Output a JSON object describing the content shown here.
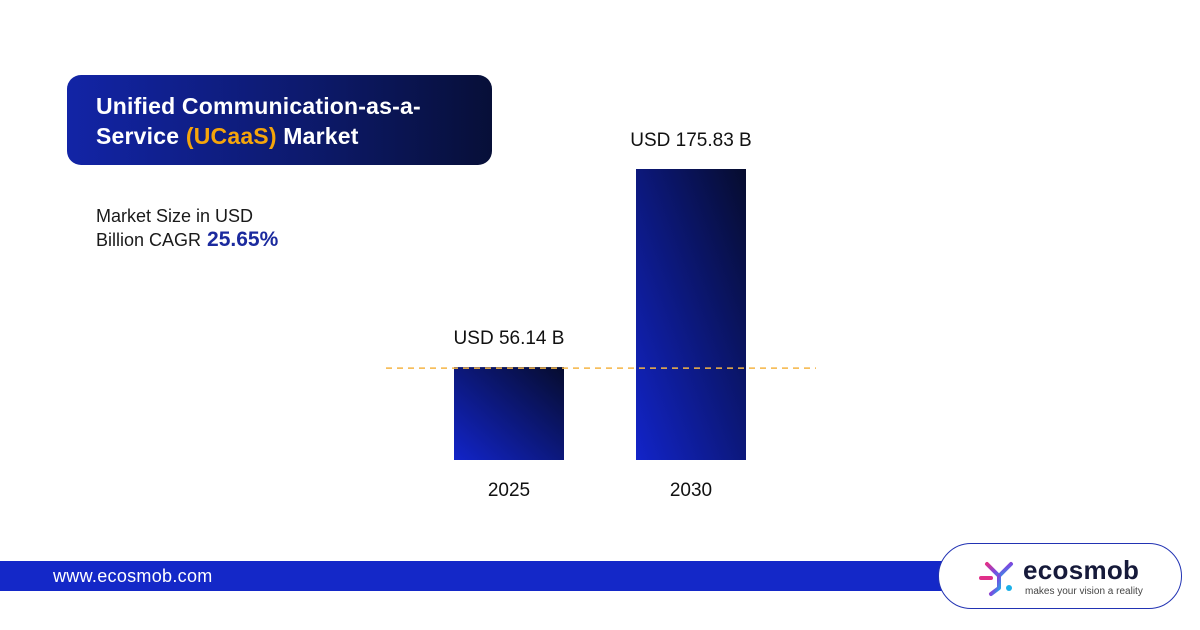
{
  "header": {
    "title_line1": "Unified Communication-as-a-",
    "title_line2_prefix": "Service ",
    "title_line2_accent": "(UCaaS)",
    "title_line2_suffix": " Market"
  },
  "subtitle": {
    "line1": "Market Size in USD",
    "line2": "Billion CAGR",
    "cagr_value": "25.65%"
  },
  "colors": {
    "title_bg": "#0d1a6e",
    "accent_orange": "#f5a50b",
    "bar_gradient_start": "#1224c9",
    "bar_gradient_end": "#060c2e",
    "reference_line": "#f5b544",
    "footer_blue": "#1428c8"
  },
  "chart_data": {
    "type": "bar",
    "categories": [
      "2025",
      "2030"
    ],
    "values": [
      56.14,
      175.83
    ],
    "data_labels": [
      "USD 56.14 B",
      "USD 175.83 B"
    ],
    "reference_line_value": 56.14,
    "reference_line_style": "dashed",
    "title": "",
    "xlabel": "",
    "ylabel": "",
    "ylim": [
      0,
      175.83
    ],
    "grid": false,
    "legend": "none"
  },
  "footer": {
    "url": "www.ecosmob.com"
  },
  "logo": {
    "icon": "ecosmob-logo-icon",
    "name": "ecosmob",
    "tagline": "makes your vision a reality"
  }
}
